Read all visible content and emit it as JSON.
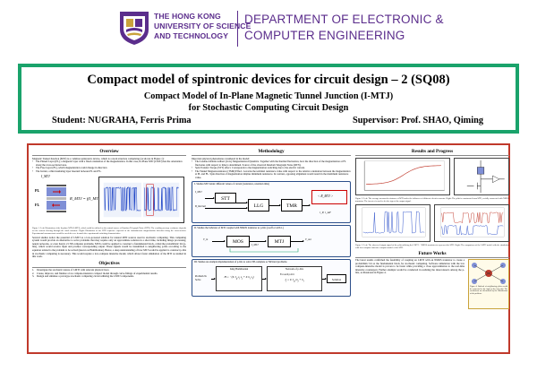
{
  "header": {
    "university_lines": [
      "THE HONG KONG",
      "UNIVERSITY OF SCIENCE",
      "AND TECHNOLOGY"
    ],
    "department_lines": [
      "DEPARTMENT OF ELECTRONIC &",
      "COMPUTER ENGINEERING"
    ],
    "brand_color": "#5b2d8c"
  },
  "title": {
    "main": "Compact model of spintronic devices for circuit design – 2 (SQ08)",
    "sub1": "Compact Model of  In-Plane Magnetic Tunnel Junction (I-MTJ)",
    "sub2": "for Stochastic Computing Circuit Design",
    "student": "Student: NUGRAHA, Ferris Prima",
    "supervisor": "Supervisor: Prof. SHAO, Qiming",
    "border_color": "#1aa36b"
  },
  "overview": {
    "heading": "Overview",
    "intro": "Magnetic Tunnel Junction (MTJ) is a common spintronics device, which is a stack structure comprising (as shown in Figure 1):",
    "bullets": [
      "The Pinned Layer (PL), a magnetic layer with a fixed orientation of the magnetization. In this case, In-Plane MTJ (I-MTJ) has the orientation along the cross-sectional area.",
      "The Free Layer (FL), which magnetization could change in direction",
      "The barrier, a thin insulating layer inserted between PL and FL."
    ],
    "fig_labels": {
      "current": "I_MTJ",
      "pl": "PL",
      "fl": "FL",
      "resistance": "R_MTJ = f(I_MTJ)"
    },
    "fig_caption": "Figure 1. Left: Illustration of the In-plane MTJ (I-MTJ), which could be utilized as the natural source of Random Telegraph Noise (RTN). The resulting average resistance depends on the current flowing through the stack structure. Right: Illustration of the RTN sequence expected in the instantaneous magnetization direction along the cross-section. Experimental measurement would be needed to see it match the experimental switching characteristics.",
    "body": "Several studies notice the potential of I-MTJ as a low-powered solution for natural RTN sources used in stochastic computing. This computing system would provide an alternative to solve problems that may require only an approximate solution in a short time, including image processing, neural networks, or even Karp's 21 NP-complete problems. MTJs could be applied to construct a fundamental block, called the probabilistic bit (p-bits), which would receive input and produce corresponding output. These signals would be transmitted to neighboring p-bits according to the equation related to the problem to be solved (known as Hamiltonian). Hence, a deep understanding of how MTJ would be applied to construct p-bits in stochastic computing is necessary. This would require a low-compute intensive model, which allows faster simulation of the MTJ as studied in this work.",
    "objectives_heading": "Objectives",
    "objectives": [
      "Investigate the stochastic nature of I-MTJ with relevant physical laws.",
      "Create, improve, and finalize a low compute-intensive compact model through curve-fittings of experimental results.",
      "Design and simulate a prototype stochastic computing circuit utilizing the I-MTJ components."
    ]
  },
  "methodology": {
    "heading": "Methodology",
    "intro": "Important physical phenomena considered in the model:",
    "bullets": [
      "The Landau-Lifshitz-Gilbert (LLG) Magnetization Dynamics. Together with the thermal fluctuation, how the direction of the magnetization at FL fluctuates with respect to time is determined. Source of the observed Random Telegraph Noise (RTN).",
      "Spin Transfer Torque (STT) effect. Corresponds to the magnetization switching due to the electric current.",
      "The Tunnel Magnetoresistance (TMR) Effect. Governs the terminal resistance value with respect to the relative orientation between the magnetization at PL and FL. Spin direction of magnetization implies minimum resistance. In contrast, opposing alignment would result in the maximum resistance value."
    ],
    "box1_title": "I. Studies MTJ under different values of current (resistance, retention time)",
    "box1_blocks": [
      "STT",
      "LLG",
      "TMR"
    ],
    "box1_inputs": [
      "I_MTJ",
      "B_thermal"
    ],
    "box1_outputs": [
      "< R_MTJ >",
      "τ_P, τ_AP"
    ],
    "box2_title": "II. Studies the behavior of MTJ coupled with NMOS transistor as p-bits (coeff or with 1.)",
    "box2_blocks": [
      "MOS",
      "MTJ"
    ],
    "box2_labels": [
      "V_in",
      "V_out",
      "I_MTJ"
    ],
    "box3_title": "III. Studies an example implementation of p-bits to solve NP-complete or NP-hard problems",
    "box3_left": "Problem To Solve",
    "box3_mid_heading": "Ising Hamiltonian",
    "box3_right_heading": "Network of p-bits",
    "box3_output": "Solution",
    "box3_each": "For each p-bit i"
  },
  "results": {
    "heading": "Results and Progress",
    "fig2_caption": "Figure 2. Left: The average measured resistance of MTJ under the influence of different electric currents. Right: The p-bit is constructed from MTJ, serially connected with NMOS transistor. The inverter is used to fix the sign of the output signal.",
    "fig3_caption": "Figure 3. Left: The observed output signal of the p-bit utilizing the I-MTJ + NMOS transistor to represent the MTJ. Right: The comparison of the I-MTJ model with the simulation with low-compute intensive compact model of the MTJ.",
    "future_heading": "Future Works",
    "future_body": "The latest results confirmed the feasibility of coupling an I-MTJ with an NMOS transistor to create a probabilistic bit as the fundamental block for stochastic computing. Software simulation with the low compute-intensive model is proven to be faster while providing a close approximation to the real-time intensive counterpart. Further attempts would be conducted in realizing the interconnects among the p-bits, as illustrated in Figure 4.",
    "fig4_caption": "Figure 4. Outlook of neighboring p-bits would be connected to the input of the i-th p-bit. The coefficients are determined by the Hamiltonian of the problem."
  }
}
